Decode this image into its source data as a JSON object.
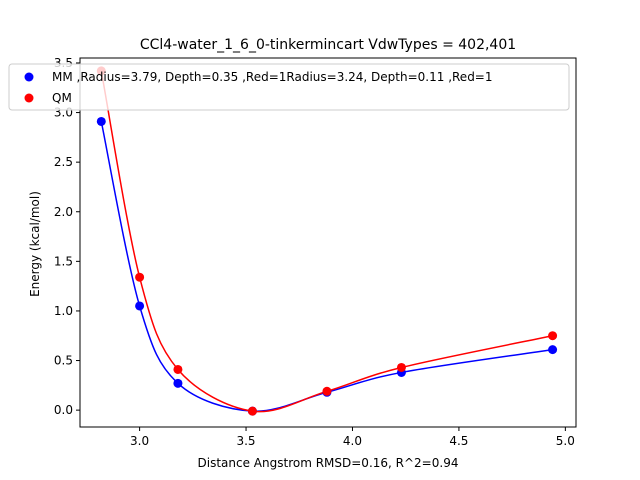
{
  "chart_data": {
    "type": "line",
    "title": "CCl4-water_1_6_0-tinkermincart VdwTypes = 402,401",
    "xlabel": "Distance Angstrom RMSD=0.16, R^2=0.94",
    "ylabel": "Energy (kcal/mol)",
    "xlim": [
      2.72,
      5.05
    ],
    "ylim": [
      -0.17,
      3.55
    ],
    "xticks": [
      3.0,
      3.5,
      4.0,
      4.5,
      5.0
    ],
    "xtick_labels": [
      "3.0",
      "3.5",
      "4.0",
      "4.5",
      "5.0"
    ],
    "yticks": [
      0.0,
      0.5,
      1.0,
      1.5,
      2.0,
      2.5,
      3.0,
      3.5
    ],
    "ytick_labels": [
      "0.0",
      "0.5",
      "1.0",
      "1.5",
      "2.0",
      "2.5",
      "3.0",
      "3.5"
    ],
    "grid": false,
    "legend_position": "top",
    "series": [
      {
        "name": "MM ,Radius=3.79, Depth=0.35 ,Red=1Radius=3.24, Depth=0.11 ,Red=1",
        "color": "#0000ff",
        "x": [
          2.82,
          3.0,
          3.18,
          3.53,
          3.88,
          4.23,
          4.94
        ],
        "y": [
          2.91,
          1.05,
          0.27,
          -0.01,
          0.18,
          0.38,
          0.61
        ]
      },
      {
        "name": "QM",
        "color": "#ff0000",
        "x": [
          2.82,
          3.0,
          3.18,
          3.53,
          3.88,
          4.23,
          4.94
        ],
        "y": [
          3.42,
          1.34,
          0.41,
          -0.01,
          0.19,
          0.43,
          0.75
        ]
      }
    ]
  }
}
